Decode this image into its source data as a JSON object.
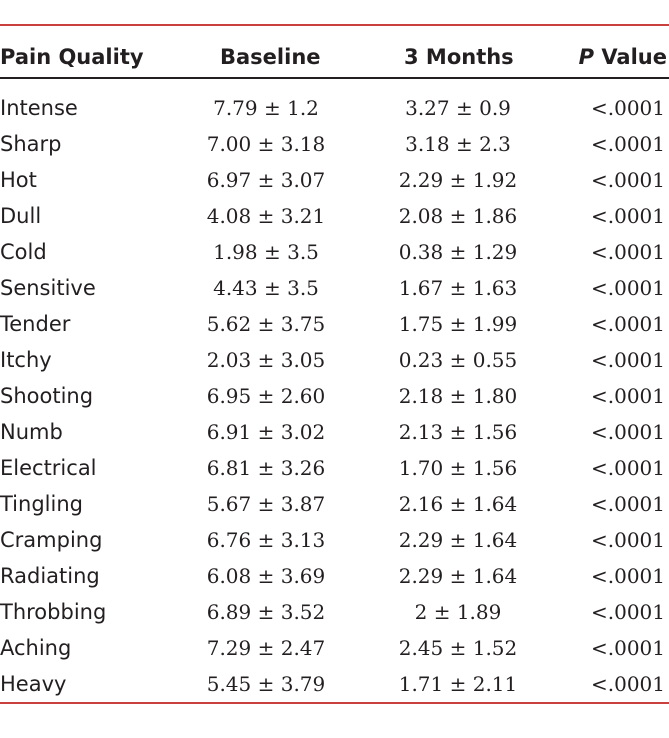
{
  "table": {
    "headers": {
      "pain_quality": "Pain Quality",
      "baseline": "Baseline",
      "three_months": "3 Months",
      "p_label": "P",
      "value_label": " Value"
    },
    "rows": [
      {
        "quality": "Intense",
        "baseline": "7.79 ± 1.2",
        "three_months": "3.27 ± 0.9",
        "p": "<.0001"
      },
      {
        "quality": "Sharp",
        "baseline": "7.00 ± 3.18",
        "three_months": "3.18 ± 2.3",
        "p": "<.0001"
      },
      {
        "quality": "Hot",
        "baseline": "6.97 ± 3.07",
        "three_months": "2.29 ± 1.92",
        "p": "<.0001"
      },
      {
        "quality": "Dull",
        "baseline": "4.08 ± 3.21",
        "three_months": "2.08 ± 1.86",
        "p": "<.0001"
      },
      {
        "quality": "Cold",
        "baseline": "1.98 ± 3.5",
        "three_months": "0.38 ± 1.29",
        "p": "<.0001"
      },
      {
        "quality": "Sensitive",
        "baseline": "4.43 ± 3.5",
        "three_months": "1.67 ± 1.63",
        "p": "<.0001"
      },
      {
        "quality": "Tender",
        "baseline": "5.62 ± 3.75",
        "three_months": "1.75 ± 1.99",
        "p": "<.0001"
      },
      {
        "quality": "Itchy",
        "baseline": "2.03 ± 3.05",
        "three_months": "0.23 ± 0.55",
        "p": "<.0001"
      },
      {
        "quality": "Shooting",
        "baseline": "6.95 ± 2.60",
        "three_months": "2.18 ± 1.80",
        "p": "<.0001"
      },
      {
        "quality": "Numb",
        "baseline": "6.91 ± 3.02",
        "three_months": "2.13 ± 1.56",
        "p": "<.0001"
      },
      {
        "quality": "Electrical",
        "baseline": "6.81 ± 3.26",
        "three_months": "1.70 ± 1.56",
        "p": "<.0001"
      },
      {
        "quality": "Tingling",
        "baseline": "5.67 ± 3.87",
        "three_months": "2.16 ± 1.64",
        "p": "<.0001"
      },
      {
        "quality": "Cramping",
        "baseline": "6.76 ± 3.13",
        "three_months": "2.29 ± 1.64",
        "p": "<.0001"
      },
      {
        "quality": "Radiating",
        "baseline": "6.08 ± 3.69",
        "three_months": "2.29 ± 1.64",
        "p": "<.0001"
      },
      {
        "quality": "Throbbing",
        "baseline": "6.89 ± 3.52",
        "three_months": "2 ± 1.89",
        "p": "<.0001"
      },
      {
        "quality": "Aching",
        "baseline": "7.29 ± 2.47",
        "three_months": "2.45 ± 1.52",
        "p": "<.0001"
      },
      {
        "quality": "Heavy",
        "baseline": "5.45 ± 3.79",
        "three_months": "1.71 ± 2.11",
        "p": "<.0001"
      }
    ]
  },
  "colors": {
    "rule_accent": "#c9403f",
    "text": "#231f20"
  }
}
